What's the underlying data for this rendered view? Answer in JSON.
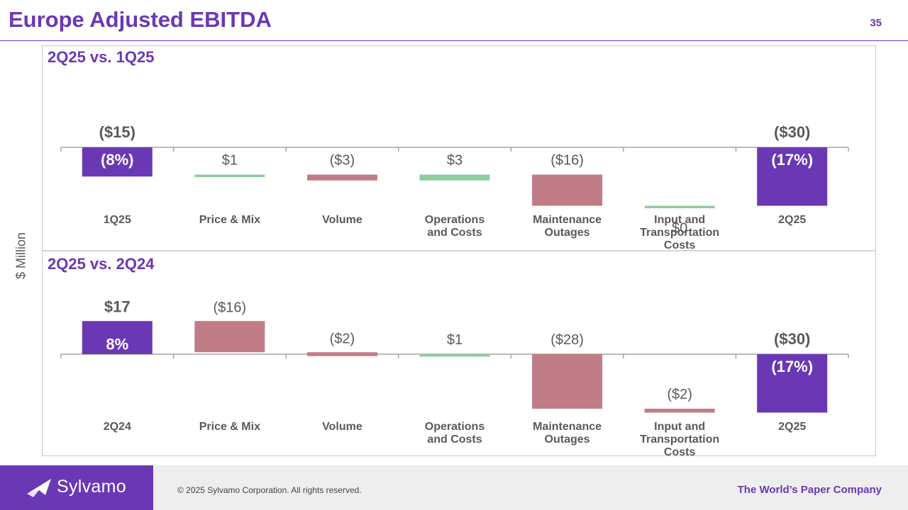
{
  "header": {
    "title": "Europe Adjusted EBITDA",
    "page_number": "35"
  },
  "y_axis_label": "$ Million",
  "colors": {
    "total": "#6a38b5",
    "increase": "#8fcca0",
    "decrease": "#c07c86",
    "axis": "#a6a6a6",
    "label": "#595959",
    "title": "#6a38b5"
  },
  "chart_data": [
    {
      "type": "bar",
      "subtype": "waterfall",
      "title": "2Q25 vs. 1Q25",
      "categories": [
        "1Q25",
        "Price & Mix",
        "Volume",
        "Operations and Costs",
        "Maintenance Outages",
        "Input and Transportation Costs",
        "2Q25"
      ],
      "category_lines": [
        [
          "1Q25"
        ],
        [
          "Price & Mix"
        ],
        [
          "Volume"
        ],
        [
          "Operations",
          "and Costs"
        ],
        [
          "Maintenance",
          "Outages"
        ],
        [
          "Input and",
          "Transportation",
          "Costs"
        ],
        [
          "2Q25"
        ]
      ],
      "values": [
        -15,
        1,
        -3,
        3,
        -16,
        0,
        -30
      ],
      "bar_kinds": [
        "total",
        "delta",
        "delta",
        "delta",
        "delta",
        "delta",
        "total"
      ],
      "value_labels": [
        "($15)",
        "$1",
        "($3)",
        "$3",
        "($16)",
        "$0",
        "($30)"
      ],
      "margin_labels": [
        "(8%)",
        "",
        "",
        "",
        "",
        "",
        "(17%)"
      ]
    },
    {
      "type": "bar",
      "subtype": "waterfall",
      "title": "2Q25 vs. 2Q24",
      "categories": [
        "2Q24",
        "Price & Mix",
        "Volume",
        "Operations and Costs",
        "Maintenance Outages",
        "Input and Transportation Costs",
        "2Q25"
      ],
      "category_lines": [
        [
          "2Q24"
        ],
        [
          "Price & Mix"
        ],
        [
          "Volume"
        ],
        [
          "Operations",
          "and Costs"
        ],
        [
          "Maintenance",
          "Outages"
        ],
        [
          "Input and",
          "Transportation",
          "Costs"
        ],
        [
          "2Q25"
        ]
      ],
      "values": [
        17,
        -16,
        -2,
        1,
        -28,
        -2,
        -30
      ],
      "bar_kinds": [
        "total",
        "delta",
        "delta",
        "delta",
        "delta",
        "delta",
        "total"
      ],
      "value_labels": [
        "$17",
        "($16)",
        "($2)",
        "$1",
        "($28)",
        "($2)",
        "($30)"
      ],
      "margin_labels": [
        "8%",
        "",
        "",
        "",
        "",
        "",
        "(17%)"
      ]
    }
  ],
  "footer": {
    "logo_text": "Sylvamo",
    "copyright": "© 2025 Sylvamo Corporation. All rights reserved.",
    "tagline": "The World’s Paper Company"
  }
}
